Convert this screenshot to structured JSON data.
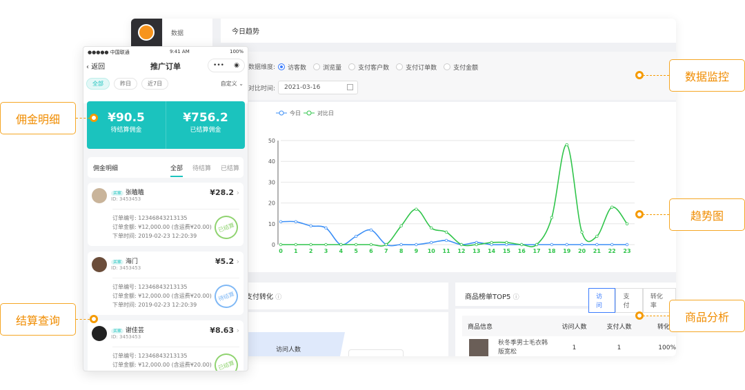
{
  "dashboard": {
    "sidebar_item": "数据",
    "section_title": "今日趋势",
    "dimension_label": "数据维度:",
    "dimensions": [
      "访客数",
      "浏览量",
      "支付客户数",
      "支付订单数",
      "支付金额"
    ],
    "selected_dimension": "访客数",
    "compare_label": "对比时间:",
    "compare_date": "2021-03-16",
    "bottom_left_title": "支付转化",
    "funnel_label": "访问人数",
    "top5": {
      "title": "商品榜单TOP5",
      "tabs": [
        "访问",
        "支付",
        "转化率"
      ],
      "active_tab": "访问",
      "headers": [
        "商品信息",
        "访问人数",
        "支付人数",
        "转化率"
      ],
      "rows": [
        {
          "name": "秋冬季男士毛衣韩版宽松",
          "visits": "1",
          "pays": "1",
          "rate": "100%"
        }
      ]
    }
  },
  "chart_data": {
    "type": "line",
    "x": [
      0,
      1,
      2,
      3,
      4,
      5,
      6,
      7,
      8,
      9,
      10,
      11,
      12,
      13,
      14,
      15,
      16,
      17,
      18,
      19,
      20,
      21,
      22,
      23
    ],
    "series": [
      {
        "name": "今日",
        "color": "#3a8ef6",
        "values": [
          11,
          11,
          9,
          8,
          0,
          4,
          7,
          0,
          0,
          0,
          1,
          2,
          0,
          1,
          0,
          0,
          0,
          0,
          0,
          0,
          0,
          0,
          0,
          0
        ]
      },
      {
        "name": "对比日",
        "color": "#2fc44a",
        "values": [
          0,
          0,
          0,
          0,
          0,
          0,
          0,
          0,
          9,
          17,
          8,
          6,
          0,
          0,
          1,
          1,
          0,
          0,
          13,
          48,
          6,
          4,
          18,
          10
        ]
      }
    ],
    "ylim": [
      0,
      50
    ],
    "yticks": [
      0,
      10,
      20,
      30,
      40,
      50
    ],
    "grid": true,
    "legend": "top-left",
    "smooth": true
  },
  "phone": {
    "carrier": "●●●●● 中国联通",
    "time": "9:41 AM",
    "battery": "100%",
    "back": "返回",
    "title": "推广订单",
    "filters": [
      "全部",
      "昨日",
      "近7日"
    ],
    "active_filter": "全部",
    "custom": "自定义",
    "pending_amount": "¥90.5",
    "pending_label": "待结算佣金",
    "settled_amount": "¥756.2",
    "settled_label": "已结算佣金",
    "detail_title": "佣金明细",
    "detail_tabs": [
      "全部",
      "待结算",
      "已结算"
    ],
    "orders": [
      {
        "tag": "买家",
        "name": "张瞌瞌",
        "id": "ID: 3453453",
        "amount": "¥28.2",
        "order_no": "订单编号: 12346843213135",
        "order_amount": "订单金额: ¥12,000.00 (含运费¥20.00)",
        "time": "下单时间: 2019-02-23 12:20:39",
        "stamp": "已结算",
        "stamp_color": "#8fd36f"
      },
      {
        "tag": "买家",
        "name": "海门",
        "id": "ID: 3453453",
        "amount": "¥5.2",
        "order_no": "订单编号: 12346843213135",
        "order_amount": "订单金额: ¥12,000.00 (含运费¥20.00)",
        "time": "下单时间: 2019-02-23 12:20:39",
        "stamp": "待结算",
        "stamp_color": "#7fb8f5"
      },
      {
        "tag": "买家",
        "name": "谢佳芸",
        "id": "ID: 3453453",
        "amount": "¥8.63",
        "order_no": "订单编号: 12346843213135",
        "order_amount": "订单金额: ¥12,000.00 (含运费¥20.00)",
        "stamp": "已结算",
        "stamp_color": "#8fd36f"
      }
    ]
  },
  "callouts": {
    "commission": "佣金明细",
    "settle": "结算查询",
    "monitor": "数据监控",
    "trend": "趋势图",
    "product": "商品分析"
  },
  "colors": {
    "accent": "#1bc3be",
    "callout": "#f59a00"
  }
}
